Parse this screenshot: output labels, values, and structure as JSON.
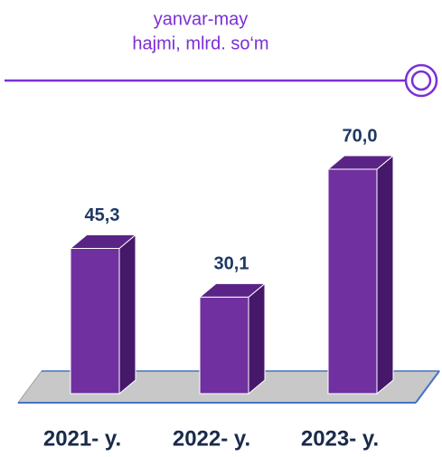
{
  "chart_data": {
    "type": "bar3d",
    "title": "yanvar-may",
    "subtitle": "hajmi, mlrd. so‘m",
    "categories": [
      "2021- y.",
      "2022- y.",
      "2023- y."
    ],
    "values": [
      45.3,
      30.1,
      70.0
    ],
    "value_labels": [
      "45,3",
      "30,1",
      "70,0"
    ],
    "color": "#7030a0"
  }
}
